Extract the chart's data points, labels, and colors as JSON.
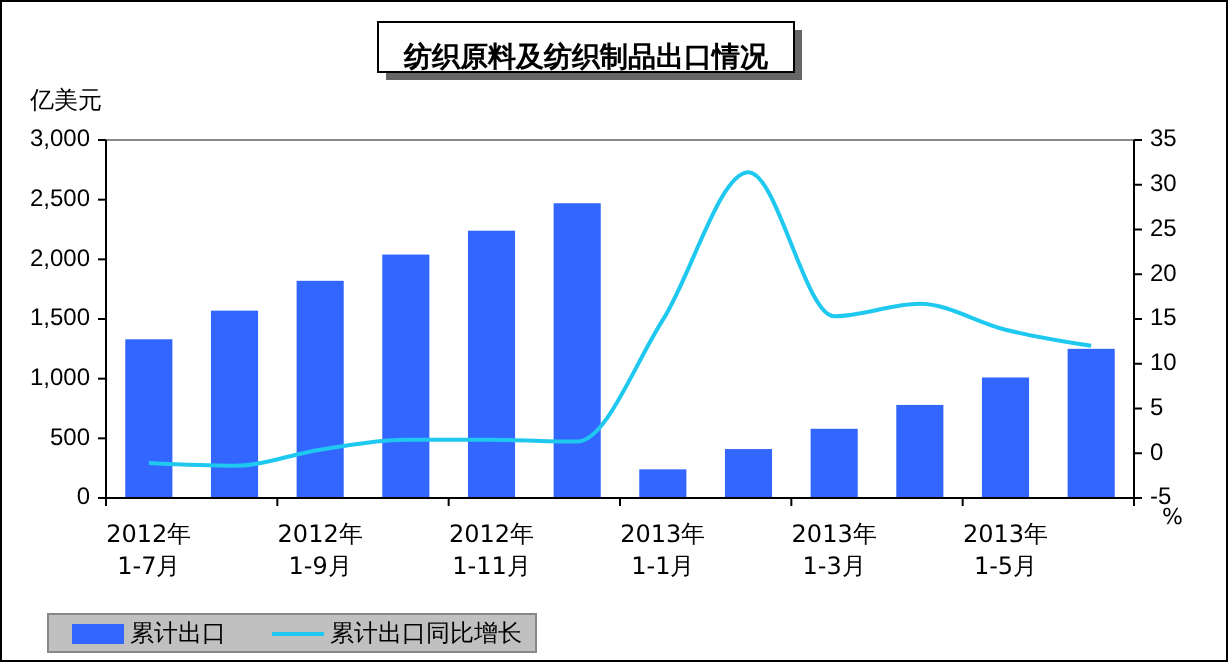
{
  "chart_data": {
    "type": "bar",
    "title": "纺织原料及纺织制品出口情况",
    "ylabel": "亿美元",
    "y2label": "%",
    "categories": [
      "2012年\n1-7月",
      null,
      "2012年\n1-9月",
      null,
      "2012年\n1-11月",
      null,
      "2013年\n1-1月",
      null,
      "2013年\n1-3月",
      null,
      "2013年\n1-5月",
      null
    ],
    "series": [
      {
        "name": "累计出口",
        "color": "#3366ff",
        "values": [
          1330,
          1570,
          1820,
          2040,
          2240,
          2470,
          240,
          410,
          580,
          780,
          1010,
          1250
        ]
      },
      {
        "name": "累计出口同比增长",
        "type": "line",
        "axis": "y2",
        "color": "#1ec8ee",
        "values": [
          -1.1,
          -1.4,
          0.4,
          1.5,
          1.5,
          1.3,
          14.9,
          31.4,
          15.3,
          16.7,
          13.8,
          12.0
        ]
      }
    ],
    "ylim": [
      0,
      3000
    ],
    "yticks": [
      {
        "value": 0,
        "label": "0"
      },
      {
        "value": 500,
        "label": "500"
      },
      {
        "value": 1000,
        "label": "1,000"
      },
      {
        "value": 1500,
        "label": "1,500"
      },
      {
        "value": 2000,
        "label": "2,000"
      },
      {
        "value": 2500,
        "label": "2,500"
      },
      {
        "value": 3000,
        "label": "3,000"
      }
    ],
    "y2lim": [
      -5,
      35
    ],
    "y2ticks": [
      -5,
      0,
      5,
      10,
      15,
      20,
      25,
      30,
      35
    ],
    "grid": false,
    "legend": "bottom",
    "marker": "none"
  }
}
